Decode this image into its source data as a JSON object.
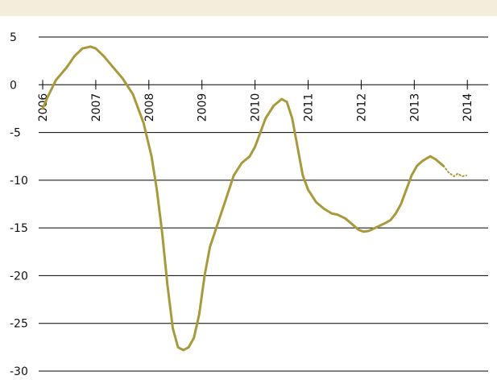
{
  "chart_data": {
    "type": "line",
    "title": "",
    "xlabel": "",
    "ylabel": "",
    "ylim": [
      -30,
      5
    ],
    "xlim": [
      2006.0,
      2014.6
    ],
    "yticks": [
      "5",
      "0",
      "-5",
      "-10",
      "-15",
      "-20",
      "-25",
      "-30"
    ],
    "xticks": [
      "2006",
      "2007",
      "2008",
      "2009",
      "2010",
      "2011",
      "2012",
      "2013",
      "2014"
    ],
    "grid": "horizontal",
    "legend": "none",
    "colors": {
      "series": "#a89a3c",
      "grid": "#000000",
      "band": "#f3eedb"
    },
    "series": [
      {
        "style": "solid",
        "points": [
          [
            2006.0,
            -2.5
          ],
          [
            2006.1,
            -1.2
          ],
          [
            2006.25,
            0.5
          ],
          [
            2006.45,
            1.8
          ],
          [
            2006.6,
            3.0
          ],
          [
            2006.75,
            3.8
          ],
          [
            2006.9,
            4.0
          ],
          [
            2007.0,
            3.8
          ],
          [
            2007.15,
            3.0
          ],
          [
            2007.3,
            2.0
          ],
          [
            2007.5,
            0.7
          ],
          [
            2007.7,
            -1.0
          ],
          [
            2007.9,
            -4.0
          ],
          [
            2008.05,
            -7.5
          ],
          [
            2008.15,
            -11.0
          ],
          [
            2008.25,
            -15.5
          ],
          [
            2008.35,
            -21.0
          ],
          [
            2008.45,
            -25.5
          ],
          [
            2008.55,
            -27.5
          ],
          [
            2008.65,
            -27.8
          ],
          [
            2008.75,
            -27.5
          ],
          [
            2008.85,
            -26.5
          ],
          [
            2008.95,
            -24.0
          ],
          [
            2009.05,
            -20.0
          ],
          [
            2009.15,
            -17.0
          ],
          [
            2009.3,
            -14.5
          ],
          [
            2009.45,
            -12.0
          ],
          [
            2009.6,
            -9.5
          ],
          [
            2009.75,
            -8.2
          ],
          [
            2009.9,
            -7.5
          ],
          [
            2010.0,
            -6.5
          ],
          [
            2010.1,
            -5.0
          ],
          [
            2010.2,
            -3.5
          ],
          [
            2010.35,
            -2.2
          ],
          [
            2010.5,
            -1.5
          ],
          [
            2010.6,
            -1.8
          ],
          [
            2010.7,
            -3.5
          ],
          [
            2010.8,
            -6.5
          ],
          [
            2010.9,
            -9.5
          ],
          [
            2011.0,
            -11.0
          ],
          [
            2011.15,
            -12.3
          ],
          [
            2011.3,
            -13.0
          ],
          [
            2011.45,
            -13.5
          ],
          [
            2011.55,
            -13.6
          ],
          [
            2011.7,
            -14.0
          ],
          [
            2011.85,
            -14.7
          ],
          [
            2011.95,
            -15.2
          ],
          [
            2012.05,
            -15.4
          ],
          [
            2012.15,
            -15.3
          ],
          [
            2012.3,
            -14.9
          ],
          [
            2012.45,
            -14.5
          ],
          [
            2012.55,
            -14.2
          ],
          [
            2012.65,
            -13.5
          ],
          [
            2012.75,
            -12.5
          ],
          [
            2012.85,
            -11.0
          ],
          [
            2012.95,
            -9.5
          ],
          [
            2013.05,
            -8.5
          ],
          [
            2013.15,
            -8.0
          ],
          [
            2013.3,
            -7.5
          ],
          [
            2013.4,
            -7.8
          ],
          [
            2013.55,
            -8.5
          ]
        ]
      },
      {
        "style": "dotted",
        "points": [
          [
            2013.55,
            -8.5
          ],
          [
            2013.65,
            -9.2
          ],
          [
            2013.75,
            -9.6
          ],
          [
            2013.82,
            -9.3
          ],
          [
            2013.9,
            -9.6
          ],
          [
            2013.98,
            -9.5
          ]
        ]
      }
    ]
  }
}
